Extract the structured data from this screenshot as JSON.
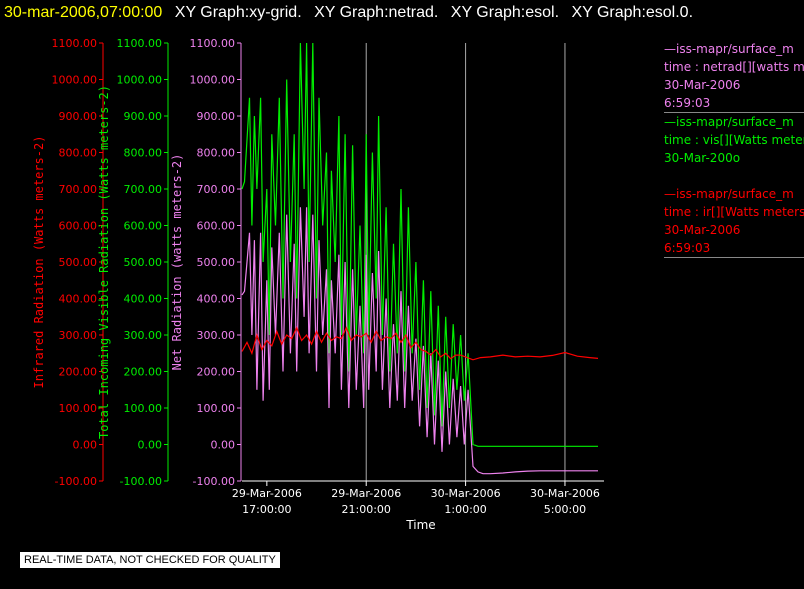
{
  "header": {
    "timestamp": "30-mar-2006,07:00:00",
    "graph_titles": [
      "XY Graph:xy-grid.",
      "XY Graph:netrad.",
      "XY Graph:esol.",
      "XY Graph:esol.0."
    ]
  },
  "legend": [
    {
      "line1": "—iss-mapr/surface_m",
      "line2": "time : netrad[][watts me",
      "line3": "30-Mar-2006",
      "line4": "6:59:03",
      "color": "#ee82ee"
    },
    {
      "line1": "—iss-mapr/surface_m",
      "line2": "time : vis[][Watts meter",
      "line3": "30-Mar-200o",
      "line4": "",
      "color": "#00ee00"
    },
    {
      "line1": "—iss-mapr/surface_m",
      "line2": "time : ir[][Watts meters",
      "line3": "30-Mar-2006",
      "line4": "6:59:03",
      "color": "#ff0000"
    }
  ],
  "footer_note": "REAL-TIME DATA, NOT CHECKED FOR QUALITY",
  "chart_data": {
    "type": "line",
    "xlabel": "Time",
    "x_ticks": [
      {
        "t": 17.0,
        "line1": "29-Mar-2006",
        "line2": "17:00:00"
      },
      {
        "t": 21.0,
        "line1": "29-Mar-2006",
        "line2": "21:00:00"
      },
      {
        "t": 25.0,
        "line1": "30-Mar-2006",
        "line2": "1:00:00"
      },
      {
        "t": 29.0,
        "line1": "30-Mar-2006",
        "line2": "5:00:00"
      }
    ],
    "xlim": [
      16.0,
      30.33
    ],
    "ylim": [
      -100,
      1100
    ],
    "y_ticks": [
      "-100.00",
      "0.00",
      "100.00",
      "200.00",
      "300.00",
      "400.00",
      "500.00",
      "600.00",
      "700.00",
      "800.00",
      "900.00",
      "1000.00",
      "1100.00"
    ],
    "axes": [
      {
        "label": "Infrared Radiation (Watts meters-2)",
        "color": "#ff0000"
      },
      {
        "label": "Total Incoming Visible Radiation (Watts meters-2)",
        "color": "#00ee00"
      },
      {
        "label": "Net Radiation (watts meters-2)",
        "color": "#ee82ee"
      }
    ],
    "grid": "vertical",
    "series": [
      {
        "color": "#00ee00",
        "x": [
          16.0,
          16.1,
          16.3,
          16.4,
          16.5,
          16.6,
          16.75,
          16.85,
          17.0,
          17.1,
          17.2,
          17.35,
          17.5,
          17.65,
          17.8,
          17.95,
          18.1,
          18.2,
          18.35,
          18.5,
          18.6,
          18.7,
          18.85,
          19.0,
          19.1,
          19.25,
          19.4,
          19.5,
          19.6,
          19.75,
          19.9,
          20.0,
          20.15,
          20.3,
          20.45,
          20.6,
          20.75,
          20.9,
          21.0,
          21.1,
          21.25,
          21.4,
          21.5,
          21.65,
          21.8,
          21.95,
          22.1,
          22.25,
          22.4,
          22.55,
          22.7,
          22.85,
          23.0,
          23.15,
          23.3,
          23.45,
          23.6,
          23.75,
          23.9,
          24.05,
          24.2,
          24.35,
          24.5,
          24.65,
          24.8,
          24.95,
          25.1,
          25.3,
          25.5,
          25.7,
          26.0,
          26.5,
          27.0,
          27.5,
          28.0,
          28.5,
          29.0,
          29.5,
          30.0,
          30.33
        ],
        "y": [
          700,
          720,
          950,
          600,
          900,
          700,
          950,
          500,
          700,
          300,
          850,
          600,
          950,
          400,
          1000,
          500,
          850,
          400,
          1100,
          700,
          1100,
          500,
          1100,
          400,
          950,
          600,
          800,
          250,
          750,
          500,
          900,
          300,
          850,
          200,
          820,
          300,
          600,
          250,
          850,
          300,
          800,
          400,
          900,
          300,
          650,
          200,
          550,
          250,
          700,
          200,
          650,
          250,
          500,
          150,
          450,
          100,
          420,
          80,
          380,
          50,
          350,
          100,
          330,
          150,
          300,
          120,
          250,
          0,
          -5,
          -5,
          -5,
          -5,
          -5,
          -5,
          -5,
          -5,
          -5,
          -5,
          -5,
          -5
        ]
      },
      {
        "color": "#ee82ee",
        "x": [
          16.0,
          16.1,
          16.3,
          16.4,
          16.5,
          16.6,
          16.75,
          16.85,
          17.0,
          17.1,
          17.2,
          17.35,
          17.5,
          17.65,
          17.8,
          17.95,
          18.1,
          18.2,
          18.35,
          18.5,
          18.6,
          18.7,
          18.85,
          19.0,
          19.1,
          19.25,
          19.4,
          19.5,
          19.6,
          19.75,
          19.9,
          20.0,
          20.15,
          20.3,
          20.45,
          20.6,
          20.75,
          20.9,
          21.0,
          21.1,
          21.25,
          21.4,
          21.5,
          21.65,
          21.8,
          21.95,
          22.1,
          22.25,
          22.4,
          22.55,
          22.7,
          22.85,
          23.0,
          23.15,
          23.3,
          23.45,
          23.6,
          23.75,
          23.9,
          24.05,
          24.2,
          24.35,
          24.5,
          24.65,
          24.8,
          24.95,
          25.1,
          25.3,
          25.5,
          25.7,
          26.0,
          26.5,
          27.0,
          27.5,
          28.0,
          28.5,
          29.0,
          29.5,
          30.0,
          30.33
        ],
        "y": [
          410,
          420,
          580,
          300,
          560,
          150,
          580,
          120,
          450,
          150,
          540,
          300,
          580,
          200,
          630,
          250,
          550,
          200,
          650,
          350,
          650,
          250,
          630,
          200,
          560,
          300,
          480,
          100,
          450,
          250,
          520,
          150,
          500,
          100,
          480,
          150,
          380,
          100,
          520,
          150,
          470,
          200,
          530,
          150,
          400,
          100,
          330,
          120,
          420,
          100,
          380,
          120,
          290,
          50,
          270,
          20,
          250,
          0,
          230,
          -20,
          200,
          0,
          180,
          20,
          160,
          0,
          150,
          -60,
          -75,
          -80,
          -80,
          -78,
          -75,
          -73,
          -72,
          -72,
          -72,
          -72,
          -72,
          -72
        ]
      },
      {
        "color": "#ff0000",
        "x": [
          16.0,
          16.2,
          16.4,
          16.6,
          16.8,
          17.0,
          17.2,
          17.4,
          17.6,
          17.8,
          18.0,
          18.2,
          18.4,
          18.6,
          18.8,
          19.0,
          19.2,
          19.4,
          19.6,
          19.8,
          20.0,
          20.2,
          20.4,
          20.6,
          20.8,
          21.0,
          21.2,
          21.4,
          21.6,
          21.8,
          22.0,
          22.2,
          22.4,
          22.6,
          22.8,
          23.0,
          23.2,
          23.4,
          23.6,
          23.8,
          24.0,
          24.2,
          24.4,
          24.6,
          24.8,
          25.0,
          25.3,
          25.6,
          26.0,
          26.5,
          27.0,
          27.5,
          28.0,
          28.5,
          29.0,
          29.5,
          30.0,
          30.33
        ],
        "y": [
          255,
          280,
          250,
          300,
          260,
          285,
          270,
          310,
          275,
          300,
          290,
          320,
          285,
          300,
          275,
          310,
          280,
          305,
          285,
          295,
          290,
          320,
          285,
          300,
          295,
          305,
          280,
          310,
          285,
          295,
          290,
          305,
          280,
          300,
          265,
          280,
          260,
          255,
          245,
          260,
          240,
          250,
          235,
          245,
          245,
          240,
          232,
          238,
          240,
          245,
          240,
          242,
          240,
          244,
          252,
          242,
          238,
          236
        ]
      }
    ]
  }
}
